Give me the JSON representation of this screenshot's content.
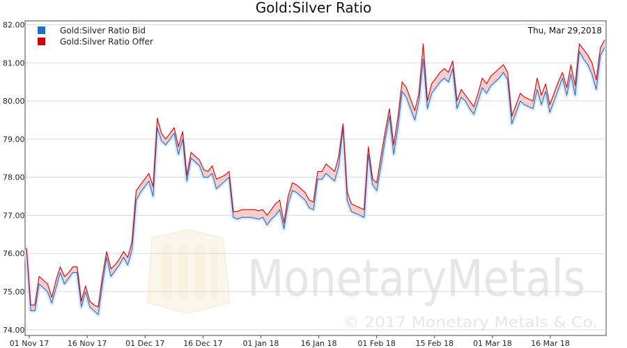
{
  "chart_data": {
    "type": "line",
    "title": "Gold:Silver Ratio",
    "date_label": "Thu, Mar 29,2018",
    "ylim": [
      73.85,
      82.1
    ],
    "yticks": [
      "74.00",
      "75.00",
      "76.00",
      "77.00",
      "78.00",
      "79.00",
      "80.00",
      "81.00",
      "82.00"
    ],
    "xticks": [
      "01 Nov 17",
      "16 Nov 17",
      "01 Dec 17",
      "16 Dec 17",
      "01 Jan 18",
      "16 Jan 18",
      "01 Feb 18",
      "15 Feb 18",
      "01 Mar 18",
      "16 Mar 18"
    ],
    "grid": "horizontal",
    "legend": "top-left",
    "colors": {
      "bid": "#1f6fc5",
      "offer": "#d40000",
      "band": "#f6cccc",
      "glow": "#cfe3f7"
    },
    "watermark": {
      "brand": "MonetaryMetals",
      "copyright": "© 2017 Monetary Metals & Co."
    },
    "series": [
      {
        "name": "Gold:Silver Ratio Bid",
        "values": [
          76.1,
          74.5,
          74.5,
          75.2,
          75.1,
          75.0,
          74.7,
          75.1,
          75.5,
          75.2,
          75.35,
          75.5,
          75.5,
          74.6,
          75.0,
          74.6,
          74.5,
          74.4,
          75.2,
          75.9,
          75.4,
          75.55,
          75.7,
          75.9,
          75.7,
          76.1,
          77.4,
          77.6,
          77.75,
          77.9,
          77.5,
          79.3,
          78.95,
          78.85,
          79.0,
          79.15,
          78.6,
          79.0,
          77.9,
          78.5,
          78.4,
          78.3,
          78.0,
          78.0,
          78.1,
          77.7,
          77.8,
          77.9,
          78.0,
          76.95,
          76.9,
          76.95,
          76.95,
          76.95,
          76.93,
          76.9,
          76.95,
          76.75,
          76.9,
          77.0,
          77.15,
          76.65,
          77.3,
          77.65,
          77.6,
          77.5,
          77.4,
          77.2,
          77.15,
          77.95,
          77.95,
          78.1,
          78.0,
          77.9,
          78.3,
          79.3,
          77.4,
          77.1,
          77.05,
          77.0,
          76.95,
          78.6,
          77.8,
          77.65,
          78.3,
          79.0,
          79.6,
          78.6,
          79.3,
          80.25,
          80.1,
          79.8,
          79.5,
          80.0,
          81.1,
          79.8,
          80.2,
          80.35,
          80.5,
          80.6,
          80.5,
          80.85,
          79.8,
          80.1,
          80.0,
          79.8,
          79.65,
          80.0,
          80.35,
          80.2,
          80.4,
          80.5,
          80.6,
          80.75,
          80.55,
          79.4,
          79.7,
          80.0,
          79.9,
          79.85,
          79.8,
          80.3,
          79.9,
          80.25,
          79.7,
          80.0,
          80.3,
          80.6,
          80.15,
          80.7,
          80.15,
          81.3,
          81.1,
          80.95,
          80.7,
          80.3,
          81.2,
          81.4
        ]
      },
      {
        "name": "Gold:Silver Ratio Offer",
        "values": [
          76.15,
          74.65,
          74.65,
          75.4,
          75.3,
          75.2,
          74.85,
          75.3,
          75.65,
          75.4,
          75.5,
          75.65,
          75.65,
          74.75,
          75.15,
          74.75,
          74.65,
          74.6,
          75.4,
          76.05,
          75.6,
          75.7,
          75.85,
          76.05,
          75.9,
          76.3,
          77.65,
          77.8,
          77.95,
          78.1,
          77.75,
          79.55,
          79.15,
          79.0,
          79.15,
          79.3,
          78.8,
          79.2,
          78.05,
          78.65,
          78.55,
          78.45,
          78.2,
          78.15,
          78.3,
          77.95,
          78.0,
          78.05,
          78.15,
          77.1,
          77.1,
          77.15,
          77.15,
          77.15,
          77.15,
          77.12,
          77.15,
          77.0,
          77.15,
          77.3,
          77.4,
          76.8,
          77.5,
          77.85,
          77.8,
          77.7,
          77.6,
          77.4,
          77.35,
          78.15,
          78.15,
          78.35,
          78.25,
          78.15,
          78.55,
          79.4,
          77.6,
          77.3,
          77.25,
          77.2,
          77.15,
          78.8,
          77.95,
          77.85,
          78.55,
          79.2,
          79.8,
          78.85,
          79.55,
          80.5,
          80.35,
          80.05,
          79.75,
          80.2,
          81.5,
          80.0,
          80.45,
          80.6,
          80.75,
          80.85,
          80.75,
          81.05,
          80.0,
          80.3,
          80.15,
          80.0,
          79.85,
          80.2,
          80.6,
          80.45,
          80.65,
          80.75,
          80.85,
          80.95,
          80.75,
          79.6,
          79.9,
          80.2,
          80.1,
          80.05,
          80.0,
          80.6,
          80.15,
          80.45,
          79.9,
          80.2,
          80.5,
          80.75,
          80.35,
          80.95,
          80.4,
          81.5,
          81.35,
          81.2,
          81.0,
          80.55,
          81.4,
          81.6
        ]
      }
    ]
  }
}
